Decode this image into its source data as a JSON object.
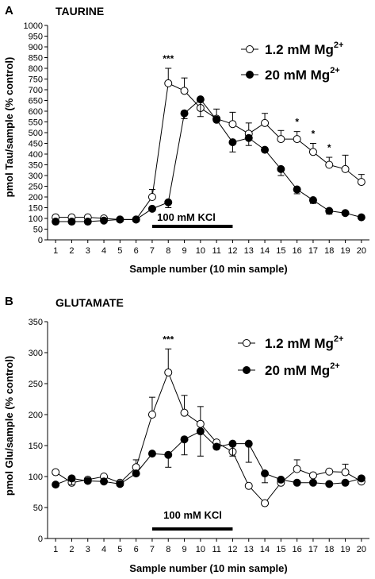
{
  "chart_data": [
    {
      "type": "line",
      "panel_letter": "A",
      "title": "TAURINE",
      "xlabel": "Sample number (10 min sample)",
      "ylabel": "pmol Tau/sample (% control)",
      "x": [
        1,
        2,
        3,
        4,
        5,
        6,
        7,
        8,
        9,
        10,
        11,
        12,
        13,
        14,
        15,
        16,
        17,
        18,
        19,
        20
      ],
      "xlim": [
        0.5,
        20.5
      ],
      "ylim": [
        0,
        1000
      ],
      "yticks": [
        0,
        50,
        100,
        150,
        200,
        250,
        300,
        350,
        400,
        450,
        500,
        550,
        600,
        650,
        700,
        750,
        800,
        850,
        900,
        950,
        1000
      ],
      "grid": false,
      "legend_position": "top-right",
      "series": [
        {
          "name": "1.2 mM Mg",
          "name_superscript": "2+",
          "marker": "open-circle",
          "values": [
            105,
            105,
            105,
            100,
            95,
            95,
            200,
            730,
            695,
            615,
            565,
            540,
            495,
            545,
            470,
            470,
            410,
            350,
            330,
            270
          ],
          "error": [
            0,
            0,
            0,
            0,
            0,
            0,
            35,
            70,
            60,
            40,
            45,
            55,
            50,
            45,
            40,
            35,
            40,
            35,
            65,
            35
          ]
        },
        {
          "name": "20 mM Mg",
          "name_superscript": "2+",
          "marker": "filled-circle",
          "values": [
            85,
            85,
            85,
            90,
            95,
            95,
            145,
            175,
            590,
            655,
            560,
            455,
            475,
            420,
            330,
            235,
            185,
            135,
            125,
            105
          ],
          "error": [
            0,
            0,
            0,
            0,
            0,
            0,
            0,
            25,
            25,
            80,
            0,
            45,
            35,
            0,
            30,
            20,
            15,
            15,
            0,
            0
          ]
        }
      ],
      "stimulus_bar": {
        "label": "100 mM KCl",
        "x_start": 7,
        "x_end": 12
      },
      "significance": [
        {
          "x": 8,
          "label": "***"
        },
        {
          "x": 16,
          "label": "*"
        },
        {
          "x": 17,
          "label": "*"
        },
        {
          "x": 18,
          "label": "*"
        }
      ]
    },
    {
      "type": "line",
      "panel_letter": "B",
      "title": "GLUTAMATE",
      "xlabel": "Sample number (10 min sample)",
      "ylabel": "pmol Glu/sample (% control)",
      "x": [
        1,
        2,
        3,
        4,
        5,
        6,
        7,
        8,
        9,
        10,
        11,
        12,
        13,
        14,
        15,
        16,
        17,
        18,
        19,
        20
      ],
      "xlim": [
        0.5,
        20.5
      ],
      "ylim": [
        0,
        350
      ],
      "yticks": [
        0,
        50,
        100,
        150,
        200,
        250,
        300,
        350
      ],
      "grid": false,
      "legend_position": "top-right",
      "series": [
        {
          "name": "1.2 mM Mg",
          "name_superscript": "2+",
          "marker": "open-circle",
          "values": [
            107,
            90,
            95,
            100,
            90,
            115,
            200,
            268,
            203,
            185,
            155,
            140,
            85,
            57,
            90,
            112,
            102,
            108,
            107,
            92
          ],
          "error": [
            0,
            0,
            0,
            0,
            0,
            12,
            28,
            38,
            28,
            28,
            0,
            0,
            0,
            0,
            0,
            15,
            0,
            0,
            13,
            0
          ]
        },
        {
          "name": "20 mM Mg",
          "name_superscript": "2+",
          "marker": "filled-circle",
          "values": [
            87,
            97,
            93,
            92,
            88,
            105,
            137,
            135,
            160,
            173,
            148,
            153,
            153,
            105,
            95,
            90,
            90,
            88,
            90,
            97
          ],
          "error": [
            0,
            10,
            0,
            0,
            0,
            0,
            0,
            20,
            25,
            40,
            0,
            20,
            30,
            15,
            0,
            0,
            0,
            0,
            0,
            0
          ]
        }
      ],
      "stimulus_bar": {
        "label": "100 mM KCl",
        "x_start": 7,
        "x_end": 12
      },
      "significance": [
        {
          "x": 8,
          "label": "***"
        }
      ]
    }
  ]
}
